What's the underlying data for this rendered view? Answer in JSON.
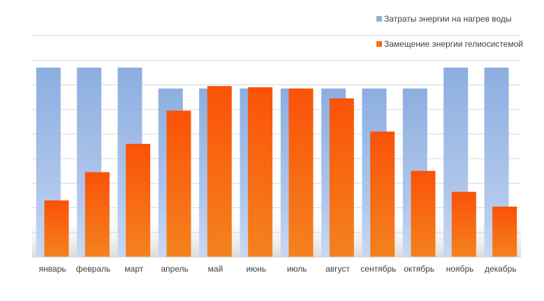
{
  "chart_data": {
    "type": "bar",
    "categories": [
      "январь",
      "февраль",
      "март",
      "апрель",
      "май",
      "июнь",
      "июль",
      "август",
      "сентябрь",
      "октябрь",
      "ноябрь",
      "декабрь"
    ],
    "series": [
      {
        "name": "Затраты энергии на нагрев воды",
        "color": "#8FB0E0",
        "values": [
          7.7,
          7.7,
          7.7,
          6.85,
          6.85,
          6.85,
          6.85,
          6.85,
          6.85,
          6.85,
          7.7,
          7.7
        ]
      },
      {
        "name": "Замещение энергии гелиосистемой",
        "color": "#F76A12",
        "values": [
          2.3,
          3.45,
          4.6,
          5.95,
          6.95,
          6.9,
          6.85,
          6.45,
          5.1,
          3.5,
          2.65,
          2.05
        ]
      }
    ],
    "ylim": [
      0,
      9
    ],
    "grid": true,
    "y_tick_labels": false,
    "legend_position": "top-right"
  }
}
